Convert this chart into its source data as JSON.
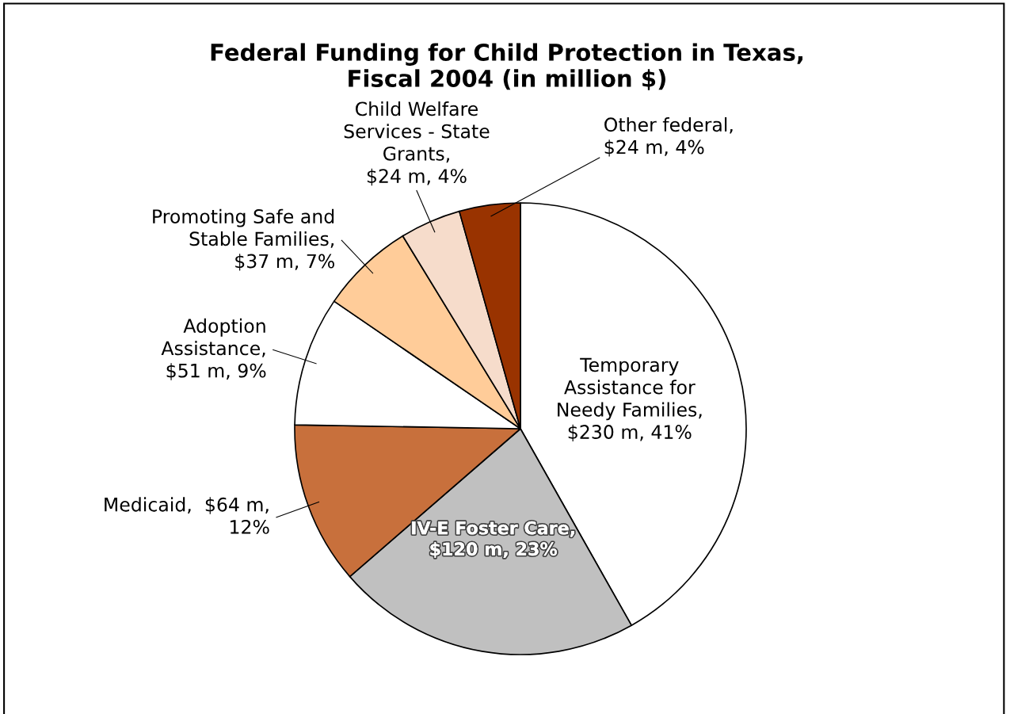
{
  "chart_data": {
    "type": "pie",
    "title": "Federal Funding for Child Protection in Texas,\nFiscal 2004 (in million $)",
    "categories": [
      "Temporary\nAssistance for\nNeedy Families,\n$230 m, 41%",
      "IV-E Foster Care,\n$120 m, 23%",
      "Medicaid,  $64 m,\n12%",
      "Adoption\nAssistance,\n$51 m, 9%",
      "Promoting Safe and\nStable Families,\n$37 m, 7%",
      "Child Welfare\nServices - State\nGrants,\n$24 m, 4%",
      "Other federal,\n$24 m, 4%"
    ],
    "values": [
      230,
      120,
      64,
      51,
      37,
      24,
      24
    ],
    "colors": [
      "#ffffff",
      "#c0c0c0",
      "#c8703c",
      "#ffffff",
      "#ffcc99",
      "#f6dccb",
      "#993300"
    ]
  }
}
